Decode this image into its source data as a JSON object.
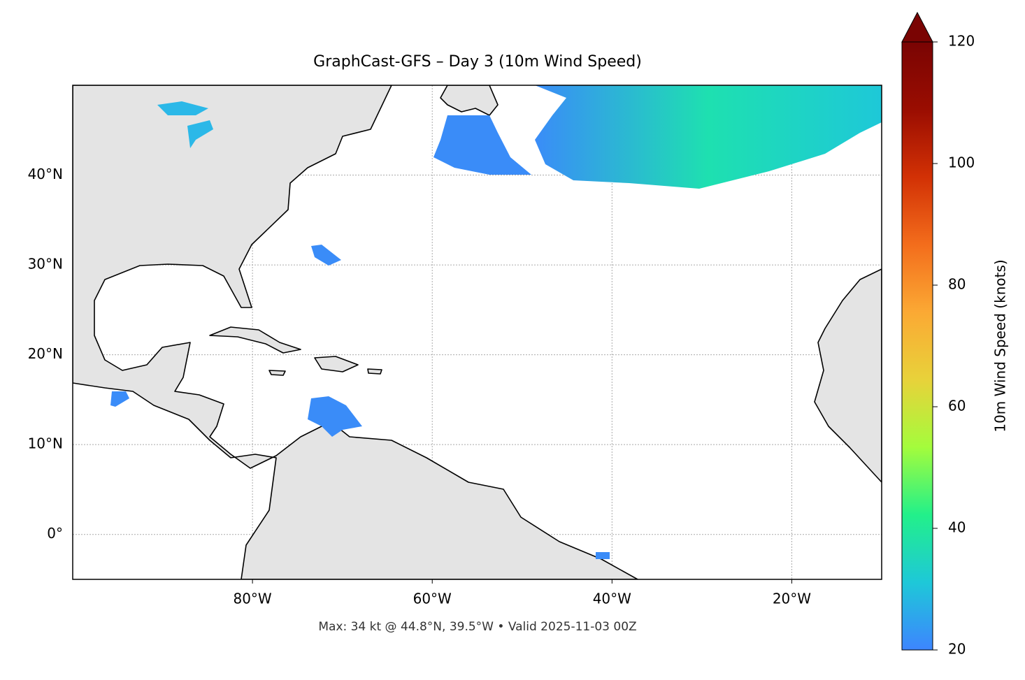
{
  "chart_data": {
    "type": "map",
    "title": "GraphCast-GFS – Day 3 (10m Wind Speed)",
    "footnote": "Max: 34 kt @ 44.8°N, 39.5°W • Valid 2025-11-03 00Z",
    "xlim": [
      -100,
      -10
    ],
    "ylim": [
      -5,
      50
    ],
    "xticks": [
      {
        "value": -80,
        "label": "80°W"
      },
      {
        "value": -60,
        "label": "60°W"
      },
      {
        "value": -40,
        "label": "40°W"
      },
      {
        "value": -20,
        "label": "20°W"
      }
    ],
    "yticks": [
      {
        "value": 0,
        "label": "0°"
      },
      {
        "value": 10,
        "label": "10°N"
      },
      {
        "value": 20,
        "label": "20°N"
      },
      {
        "value": 30,
        "label": "30°N"
      },
      {
        "value": 40,
        "label": "40°N"
      }
    ],
    "grid": true,
    "colorbar": {
      "label": "10m Wind Speed (knots)",
      "lim": [
        20,
        120
      ],
      "ticks": [
        20,
        40,
        60,
        80,
        100,
        120
      ],
      "colors": [
        "#3d85ff",
        "#1ec8d8",
        "#22f08a",
        "#a4fc3c",
        "#e8d23a",
        "#fba934",
        "#f36d1c",
        "#d23105",
        "#9a0d01",
        "#7a0403"
      ]
    }
  }
}
